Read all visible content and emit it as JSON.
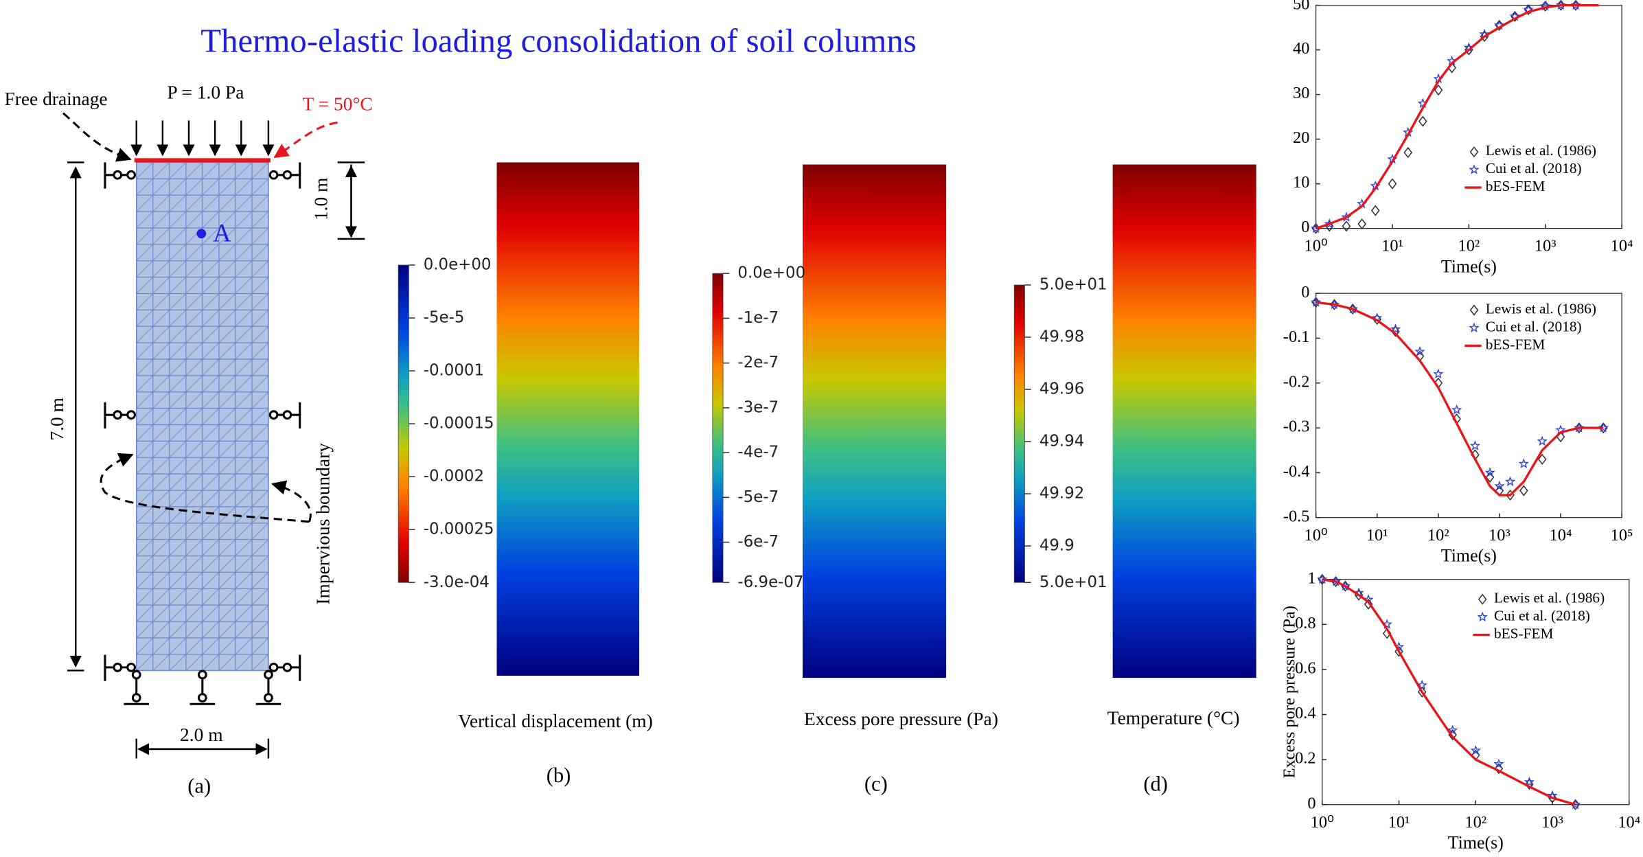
{
  "title": "Thermo-elastic loading consolidation of soil columns",
  "panel_a": {
    "free_drainage": "Free drainage",
    "load": "P = 1.0 Pa",
    "temperature": "T = 50°C",
    "depth_a": "1.0 m",
    "point": "A",
    "height": "7.0 m",
    "boundary": "Impervious boundary",
    "width": "2.0 m",
    "label": "(a)"
  },
  "colorbars": [
    {
      "title": "Vertical displacement (m)",
      "label": "(b)",
      "range": [
        0,
        -0.0003
      ],
      "reversed": true,
      "ticks": [
        {
          "value": 0,
          "label": "0.0e+00"
        },
        {
          "value": -5e-05,
          "label": "-5e-5"
        },
        {
          "value": -0.0001,
          "label": "-0.0001"
        },
        {
          "value": -0.00015,
          "label": "-0.00015"
        },
        {
          "value": -0.0002,
          "label": "-0.0002"
        },
        {
          "value": -0.00025,
          "label": "-0.00025"
        },
        {
          "value": -0.0003,
          "label": "-3.0e-04"
        }
      ]
    },
    {
      "title": "Excess pore pressure (Pa)",
      "label": "(c)",
      "range": [
        0,
        -6.9e-07
      ],
      "reversed": false,
      "ticks": [
        {
          "value": 0,
          "label": "0.0e+00"
        },
        {
          "value": -1e-07,
          "label": "-1e-7"
        },
        {
          "value": -2e-07,
          "label": "-2e-7"
        },
        {
          "value": -3e-07,
          "label": "-3e-7"
        },
        {
          "value": -4e-07,
          "label": "-4e-7"
        },
        {
          "value": -5e-07,
          "label": "-5e-7"
        },
        {
          "value": -6e-07,
          "label": "-6e-7"
        },
        {
          "value": -6.9e-07,
          "label": "-6.9e-07"
        }
      ]
    },
    {
      "title": "Temperature (°C)",
      "label": "(d)",
      "range": [
        50,
        49.886
      ],
      "reversed": false,
      "ticks": [
        {
          "value": 50,
          "label": "5.0e+01"
        },
        49.98,
        49.96,
        49.94,
        49.92,
        49.9,
        {
          "value": 49.886,
          "label": "5.0e+01"
        }
      ]
    }
  ],
  "chart_data": [
    {
      "type": "line",
      "x_label": "Time(s)",
      "xlog": true,
      "xlim": [
        1,
        10000
      ],
      "ylim": [
        0,
        50
      ],
      "xticks": [
        {
          "value": 1,
          "label": "10⁰"
        },
        {
          "value": 10,
          "label": "10¹"
        },
        {
          "value": 100,
          "label": "10²"
        },
        {
          "value": 1000,
          "label": "10³"
        },
        {
          "value": 10000,
          "label": "10⁴"
        }
      ],
      "yticks": [
        0,
        10,
        20,
        30,
        40,
        50
      ],
      "x": [
        1,
        1.5,
        2.5,
        4,
        6,
        10,
        16,
        25,
        40,
        60,
        100,
        160,
        250,
        400,
        600,
        1000,
        1600,
        2500,
        5000
      ],
      "series": [
        {
          "name": "Lewis et al. (1986)",
          "color": "#333333",
          "marker": "diamond",
          "values": [
            0,
            0.5,
            0.5,
            1,
            4,
            10,
            17,
            24,
            31,
            36,
            40,
            43,
            45.5,
            47.5,
            49,
            49.8,
            50,
            50,
            null
          ]
        },
        {
          "name": "Cui et al. (2018)",
          "color": "#2b3fd6",
          "marker": "star",
          "values": [
            0,
            1,
            2.5,
            5.5,
            9.5,
            15.5,
            21.5,
            28,
            33.5,
            37.5,
            40.5,
            43.5,
            45.5,
            47.5,
            49,
            49.8,
            50,
            50,
            null
          ]
        },
        {
          "name": "bES-FEM",
          "color": "#e8161b",
          "marker": "line",
          "values": [
            0,
            1,
            2.5,
            5,
            9,
            15,
            21,
            27,
            33,
            37,
            40,
            43,
            45,
            47,
            48.5,
            49.5,
            50,
            50,
            50
          ]
        }
      ]
    },
    {
      "type": "line",
      "x_label": "Time(s)",
      "xlog": true,
      "xlim": [
        1,
        100000
      ],
      "ylim": [
        -0.5,
        0
      ],
      "xticks": [
        {
          "value": 1,
          "label": "10⁰"
        },
        {
          "value": 10,
          "label": "10¹"
        },
        {
          "value": 100,
          "label": "10²"
        },
        {
          "value": 1000,
          "label": "10³"
        },
        {
          "value": 10000,
          "label": "10⁴"
        },
        {
          "value": 100000,
          "label": "10⁵"
        }
      ],
      "yticks": [
        0,
        -0.1,
        -0.2,
        -0.3,
        -0.4,
        -0.5
      ],
      "x": [
        1,
        2,
        4,
        10,
        20,
        50,
        100,
        200,
        400,
        700,
        1000,
        1500,
        2500,
        5000,
        10000,
        20000,
        50000
      ],
      "series": [
        {
          "name": "Lewis et al. (1986)",
          "color": "#333333",
          "marker": "diamond",
          "values": [
            -0.02,
            -0.025,
            -0.035,
            -0.058,
            -0.085,
            -0.14,
            -0.2,
            -0.28,
            -0.36,
            -0.41,
            -0.44,
            -0.45,
            -0.44,
            -0.37,
            -0.32,
            -0.3,
            -0.3
          ]
        },
        {
          "name": "Cui et al. (2018)",
          "color": "#2b3fd6",
          "marker": "star",
          "values": [
            -0.02,
            -0.025,
            -0.035,
            -0.055,
            -0.08,
            -0.13,
            -0.18,
            -0.26,
            -0.34,
            -0.4,
            -0.43,
            -0.42,
            -0.38,
            -0.33,
            -0.305,
            -0.3,
            -0.3
          ]
        },
        {
          "name": "bES-FEM",
          "color": "#e8161b",
          "marker": "line",
          "values": [
            -0.02,
            -0.025,
            -0.035,
            -0.06,
            -0.09,
            -0.15,
            -0.21,
            -0.29,
            -0.37,
            -0.43,
            -0.45,
            -0.45,
            -0.42,
            -0.35,
            -0.31,
            -0.3,
            -0.3
          ]
        }
      ]
    },
    {
      "type": "line",
      "x_label": "Time(s)",
      "y_label": "Excess pore pressure (Pa)",
      "xlog": true,
      "xlim": [
        1,
        10000
      ],
      "ylim": [
        0,
        1
      ],
      "xticks": [
        {
          "value": 1,
          "label": "10⁰"
        },
        {
          "value": 10,
          "label": "10¹"
        },
        {
          "value": 100,
          "label": "10²"
        },
        {
          "value": 1000,
          "label": "10³"
        },
        {
          "value": 10000,
          "label": "10⁴"
        }
      ],
      "yticks": [
        0,
        0.2,
        0.4,
        0.6,
        0.8,
        1
      ],
      "x": [
        1,
        1.5,
        2,
        3,
        4,
        7,
        10,
        20,
        50,
        100,
        200,
        500,
        1000,
        2000
      ],
      "series": [
        {
          "name": "Lewis et al. (1986)",
          "color": "#333333",
          "marker": "diamond",
          "values": [
            1,
            0.99,
            0.97,
            0.93,
            0.89,
            0.76,
            0.68,
            0.5,
            0.31,
            0.22,
            0.16,
            0.09,
            0.03,
            0
          ]
        },
        {
          "name": "Cui et al. (2018)",
          "color": "#2b3fd6",
          "marker": "star",
          "values": [
            1,
            0.99,
            0.97,
            0.94,
            0.91,
            0.8,
            0.7,
            0.53,
            0.33,
            0.24,
            0.18,
            0.1,
            0.04,
            0
          ]
        },
        {
          "name": "bES-FEM",
          "color": "#e8161b",
          "marker": "line",
          "values": [
            1,
            0.99,
            0.97,
            0.93,
            0.9,
            0.78,
            0.68,
            0.5,
            0.3,
            0.2,
            0.15,
            0.08,
            0.03,
            0
          ]
        }
      ]
    }
  ]
}
